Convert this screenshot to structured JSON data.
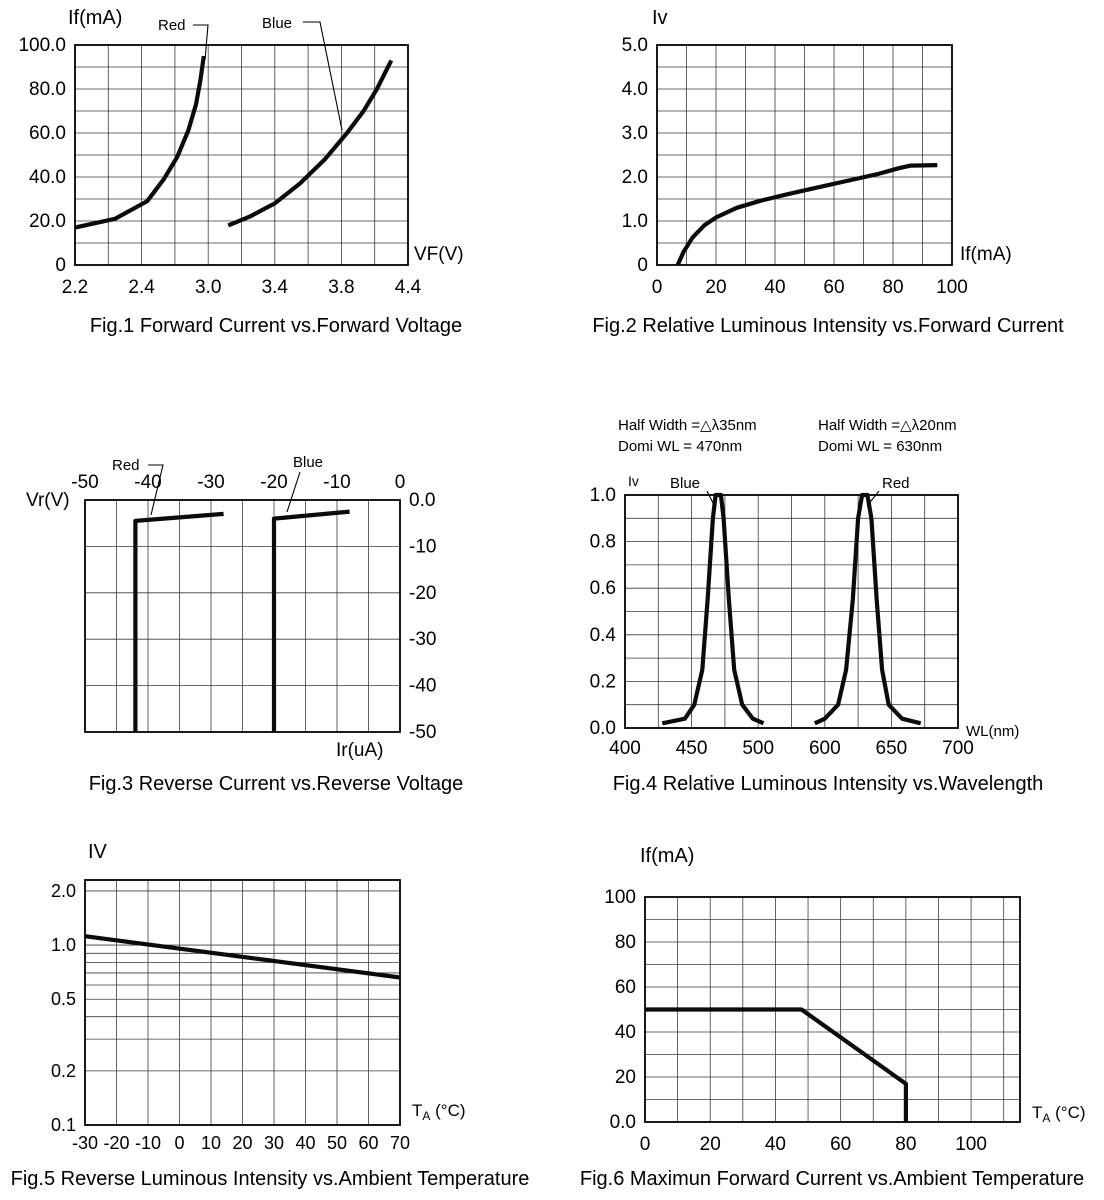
{
  "page": {
    "background": "#ffffff",
    "ink": "#000000"
  },
  "chart_data": [
    {
      "id": "fig1",
      "type": "line",
      "caption": "Fig.1 Forward Current vs.Forward Voltage",
      "ylabel": "If(mA)",
      "xlabel": "VF(V)",
      "x_axis": {
        "scale": "anchors",
        "anchors": [
          2.2,
          2.4,
          3.0,
          3.4,
          3.8,
          4.4
        ],
        "tick_labels": [
          "2.2",
          "2.4",
          "3.0",
          "3.4",
          "3.8",
          "4.4"
        ]
      },
      "y_axis": {
        "scale": "linear",
        "min": 0,
        "max": 100,
        "ticks": [
          0,
          20,
          40,
          60,
          80,
          100
        ],
        "tick_labels": [
          "0",
          "20.0",
          "40.0",
          "60.0",
          "80.0",
          "100.0"
        ],
        "grid_values": [
          10,
          20,
          30,
          40,
          50,
          60,
          70,
          80,
          90
        ]
      },
      "series": [
        {
          "name": "Red",
          "points": [
            [
              2.2,
              17
            ],
            [
              2.32,
              21
            ],
            [
              2.45,
              29
            ],
            [
              2.6,
              39
            ],
            [
              2.72,
              49
            ],
            [
              2.82,
              61
            ],
            [
              2.89,
              73
            ],
            [
              2.93,
              84
            ],
            [
              2.96,
              95
            ]
          ]
        },
        {
          "name": "Blue",
          "points": [
            [
              3.12,
              18
            ],
            [
              3.25,
              22
            ],
            [
              3.4,
              28
            ],
            [
              3.55,
              37
            ],
            [
              3.7,
              48
            ],
            [
              3.85,
              60
            ],
            [
              4.0,
              70
            ],
            [
              4.12,
              80
            ],
            [
              4.25,
              93
            ]
          ]
        }
      ]
    },
    {
      "id": "fig2",
      "type": "line",
      "caption": "Fig.2 Relative Luminous Intensity vs.Forward Current",
      "ylabel": "Iv",
      "xlabel": "If(mA)",
      "x_axis": {
        "scale": "linear",
        "min": 0,
        "max": 100,
        "ticks": [
          0,
          20,
          40,
          60,
          80,
          100
        ],
        "tick_labels": [
          "0",
          "20",
          "40",
          "60",
          "80",
          "100"
        ],
        "grid_values": [
          10,
          20,
          30,
          40,
          50,
          60,
          70,
          80,
          90
        ]
      },
      "y_axis": {
        "scale": "linear",
        "min": 0,
        "max": 5,
        "ticks": [
          0,
          1,
          2,
          3,
          4,
          5
        ],
        "tick_labels": [
          "0",
          "1.0",
          "2.0",
          "3.0",
          "4.0",
          "5.0"
        ],
        "grid_values": [
          0.5,
          1,
          1.5,
          2,
          2.5,
          3,
          3.5,
          4,
          4.5
        ]
      },
      "series": [
        {
          "name": "Iv",
          "points": [
            [
              7,
              0
            ],
            [
              9,
              0.3
            ],
            [
              12,
              0.62
            ],
            [
              16,
              0.9
            ],
            [
              20,
              1.08
            ],
            [
              27,
              1.3
            ],
            [
              35,
              1.46
            ],
            [
              45,
              1.62
            ],
            [
              55,
              1.77
            ],
            [
              65,
              1.92
            ],
            [
              75,
              2.07
            ],
            [
              82,
              2.2
            ],
            [
              86,
              2.26
            ],
            [
              95,
              2.27
            ]
          ]
        }
      ]
    },
    {
      "id": "fig3",
      "type": "line",
      "caption": "Fig.3 Reverse Current vs.Reverse Voltage",
      "ylabel": "Vr(V)",
      "xlabel": "Ir(uA)",
      "x_axis": {
        "scale": "linear",
        "min": -50,
        "max": 0,
        "ticks": [
          -50,
          -40,
          -30,
          -20,
          -10,
          0
        ],
        "tick_labels": [
          "-50",
          "-40",
          "-30",
          "-20",
          "-10",
          "0"
        ],
        "grid_values": [
          -45,
          -40,
          -35,
          -30,
          -25,
          -20,
          -15,
          -10,
          -5
        ]
      },
      "y_axis": {
        "scale": "linear",
        "min": -50,
        "max": 0,
        "ticks": [
          0,
          -10,
          -20,
          -30,
          -40,
          -50
        ],
        "tick_labels": [
          "0.0",
          "-10",
          "-20",
          "-30",
          "-40",
          "-50"
        ],
        "grid_values": [
          -10,
          -20,
          -30,
          -40
        ]
      },
      "series": [
        {
          "name": "Red",
          "points": [
            [
              -28,
              -3
            ],
            [
              -42,
              -4.5
            ],
            [
              -42,
              -50
            ]
          ]
        },
        {
          "name": "Blue",
          "points": [
            [
              -8,
              -2.5
            ],
            [
              -20,
              -4
            ],
            [
              -20,
              -50
            ]
          ]
        }
      ]
    },
    {
      "id": "fig4",
      "type": "line",
      "caption": "Fig.4 Relative Luminous Intensity vs.Wavelength",
      "ylabel": "Iv",
      "xlabel": "WL(nm)",
      "annotations": [
        {
          "lines": [
            "Half Width =△λ35nm",
            "Domi WL = 470nm"
          ]
        },
        {
          "lines": [
            "Half Width =△λ20nm",
            "Domi WL = 630nm"
          ]
        }
      ],
      "x_axis": {
        "scale": "anchors",
        "anchors": [
          400,
          450,
          500,
          600,
          650,
          700
        ],
        "tick_labels": [
          "400",
          "450",
          "500",
          "600",
          "650",
          "700"
        ]
      },
      "y_axis": {
        "scale": "linear",
        "min": 0,
        "max": 1,
        "ticks": [
          0,
          0.2,
          0.4,
          0.6,
          0.8,
          1
        ],
        "tick_labels": [
          "0.0",
          "0.2",
          "0.4",
          "0.6",
          "0.8",
          "1.0"
        ],
        "grid_values": [
          0.1,
          0.2,
          0.3,
          0.4,
          0.5,
          0.6,
          0.7,
          0.8,
          0.9
        ]
      },
      "series": [
        {
          "name": "Blue",
          "dominant_wl_nm": 470,
          "half_width_nm": 35,
          "points": [
            [
              428,
              0.02
            ],
            [
              445,
              0.04
            ],
            [
              452,
              0.1
            ],
            [
              458,
              0.25
            ],
            [
              462,
              0.55
            ],
            [
              466,
              0.9
            ],
            [
              468,
              1.0
            ],
            [
              472,
              1.0
            ],
            [
              474,
              0.9
            ],
            [
              478,
              0.55
            ],
            [
              482,
              0.25
            ],
            [
              488,
              0.1
            ],
            [
              496,
              0.04
            ],
            [
              508,
              0.02
            ]
          ]
        },
        {
          "name": "Red",
          "dominant_wl_nm": 630,
          "half_width_nm": 20,
          "points": [
            [
              585,
              0.02
            ],
            [
              600,
              0.04
            ],
            [
              610,
              0.1
            ],
            [
              616,
              0.25
            ],
            [
              621,
              0.55
            ],
            [
              625,
              0.9
            ],
            [
              628,
              1.0
            ],
            [
              632,
              1.0
            ],
            [
              635,
              0.9
            ],
            [
              639,
              0.55
            ],
            [
              643,
              0.25
            ],
            [
              648,
              0.1
            ],
            [
              658,
              0.04
            ],
            [
              672,
              0.02
            ]
          ]
        }
      ]
    },
    {
      "id": "fig5",
      "type": "line",
      "caption": "Fig.5 Reverse Luminous Intensity vs.Ambient Temperature",
      "ylabel": "IV",
      "xlabel": {
        "main": "T",
        "sub": "A",
        "suffix": " (°C)"
      },
      "x_axis": {
        "scale": "linear",
        "min": -30,
        "max": 70,
        "ticks": [
          -30,
          -20,
          -10,
          0,
          10,
          20,
          30,
          40,
          50,
          60,
          70
        ],
        "tick_labels": [
          "-30",
          "-20",
          "-10",
          "0",
          "10",
          "20",
          "30",
          "40",
          "50",
          "60",
          "70"
        ],
        "grid_values": [
          -20,
          -10,
          0,
          10,
          20,
          30,
          40,
          50,
          60
        ]
      },
      "y_axis": {
        "scale": "log",
        "min": 0.1,
        "max": 2.3,
        "ticks": [
          2,
          1,
          0.5,
          0.2,
          0.1
        ],
        "tick_labels": [
          "2.0",
          "1.0",
          "0.5",
          "0.2",
          "0.1"
        ],
        "grid_values": [
          2,
          1,
          0.9,
          0.8,
          0.7,
          0.6,
          0.5,
          0.4,
          0.3,
          0.2
        ]
      },
      "series": [
        {
          "name": "IV",
          "points": [
            [
              -30,
              1.12
            ],
            [
              70,
              0.66
            ]
          ]
        }
      ]
    },
    {
      "id": "fig6",
      "type": "line",
      "caption": "Fig.6 Maximun Forward Current vs.Ambient Temperature",
      "ylabel": "If(mA)",
      "xlabel": {
        "main": "T",
        "sub": "A",
        "suffix": " (°C)"
      },
      "x_axis": {
        "scale": "linear",
        "min": 0,
        "max": 115,
        "ticks": [
          0,
          20,
          40,
          60,
          80,
          100
        ],
        "tick_labels": [
          "0",
          "20",
          "40",
          "60",
          "80",
          "100"
        ],
        "grid_values": [
          10,
          20,
          30,
          40,
          50,
          60,
          70,
          80,
          90,
          100,
          110
        ]
      },
      "y_axis": {
        "scale": "linear",
        "min": 0,
        "max": 100,
        "ticks": [
          0,
          20,
          40,
          60,
          80,
          100
        ],
        "tick_labels": [
          "0.0",
          "20",
          "40",
          "60",
          "80",
          "100"
        ],
        "grid_values": [
          10,
          20,
          30,
          40,
          50,
          60,
          70,
          80,
          90
        ]
      },
      "series": [
        {
          "name": "If",
          "points": [
            [
              0,
              50
            ],
            [
              48,
              50
            ],
            [
              80,
              17
            ],
            [
              80,
              0
            ]
          ]
        }
      ]
    }
  ]
}
